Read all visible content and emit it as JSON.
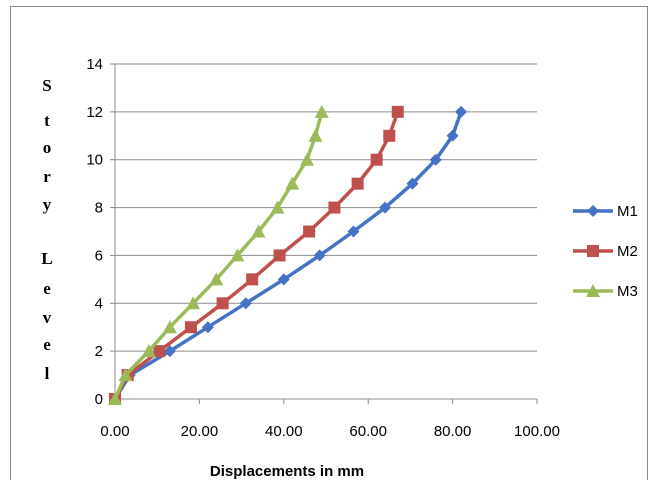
{
  "chart_data": {
    "type": "line",
    "xlabel": "Displacements in mm",
    "ylabel_letters": [
      "S",
      "t",
      "o",
      "r",
      "y",
      "L",
      "e",
      "v",
      "e",
      "l"
    ],
    "xlim": [
      0,
      100
    ],
    "ylim": [
      0,
      14
    ],
    "x_ticks": [
      "0.00",
      "20.00",
      "40.00",
      "60.00",
      "80.00",
      "100.00"
    ],
    "y_ticks": [
      "0",
      "2",
      "4",
      "6",
      "8",
      "10",
      "12",
      "14"
    ],
    "grid": "horizontal",
    "legend_position": "right",
    "series": [
      {
        "name": "M1",
        "color": "#4472C4",
        "marker": "diamond",
        "points": [
          [
            0,
            0
          ],
          [
            3.5,
            1
          ],
          [
            13,
            2
          ],
          [
            22,
            3
          ],
          [
            31,
            4
          ],
          [
            40,
            5
          ],
          [
            48.5,
            6
          ],
          [
            56.5,
            7
          ],
          [
            64,
            8
          ],
          [
            70.5,
            9
          ],
          [
            76,
            10
          ],
          [
            80,
            11
          ],
          [
            82,
            12
          ]
        ]
      },
      {
        "name": "M2",
        "color": "#C0504D",
        "marker": "square",
        "points": [
          [
            0,
            0
          ],
          [
            3,
            1
          ],
          [
            10.5,
            2
          ],
          [
            18,
            3
          ],
          [
            25.5,
            4
          ],
          [
            32.5,
            5
          ],
          [
            39,
            6
          ],
          [
            46,
            7
          ],
          [
            52,
            8
          ],
          [
            57.5,
            9
          ],
          [
            62,
            10
          ],
          [
            65,
            11
          ],
          [
            67,
            12
          ]
        ]
      },
      {
        "name": "M3",
        "color": "#9BBB59",
        "marker": "triangle",
        "points": [
          [
            0,
            0
          ],
          [
            2.5,
            1
          ],
          [
            8,
            2
          ],
          [
            13,
            3
          ],
          [
            18.5,
            4
          ],
          [
            24,
            5
          ],
          [
            29,
            6
          ],
          [
            34,
            7
          ],
          [
            38.5,
            8
          ],
          [
            42,
            9
          ],
          [
            45.5,
            10
          ],
          [
            47.5,
            11
          ],
          [
            49,
            12
          ]
        ]
      }
    ]
  }
}
